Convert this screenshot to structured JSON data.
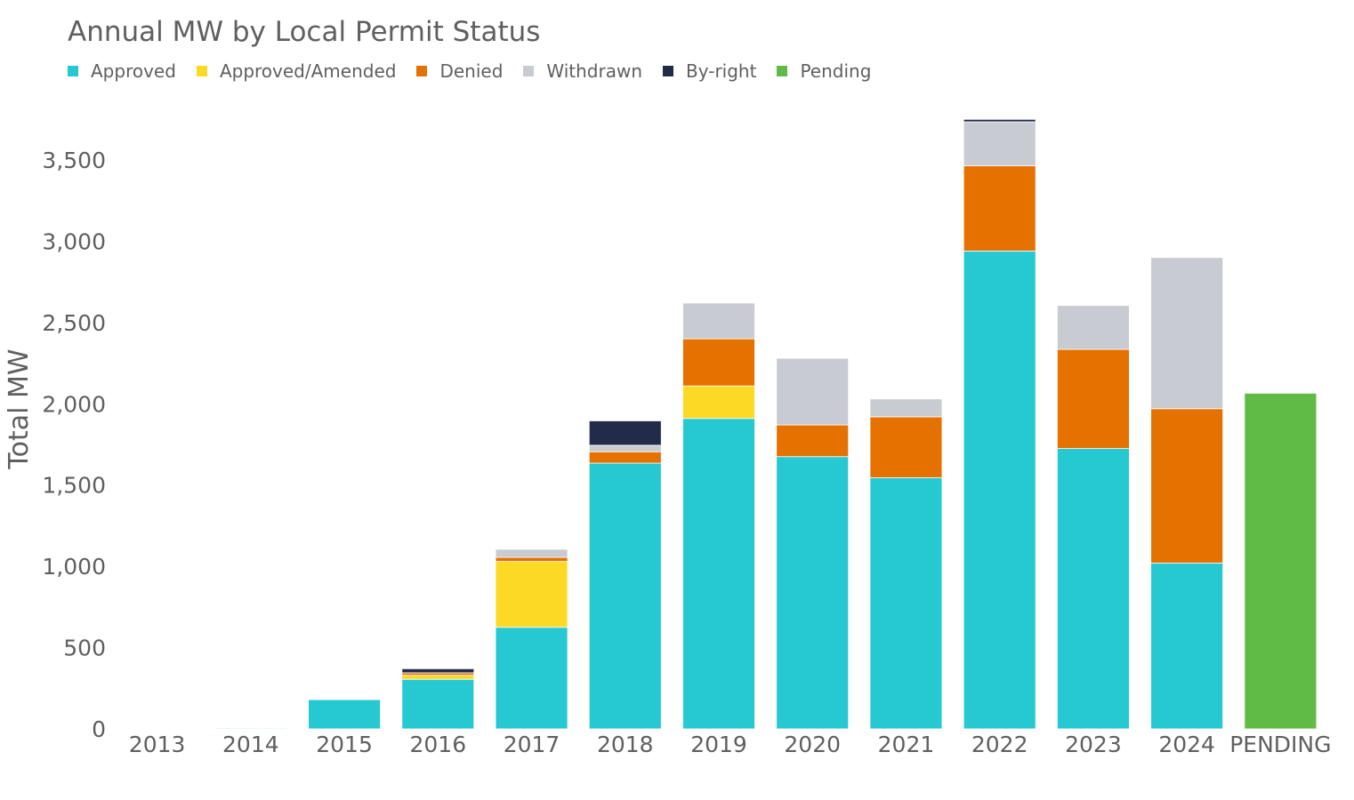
{
  "chart_data": {
    "type": "bar",
    "stacked": true,
    "title": "Annual MW by Local Permit Status",
    "xlabel": "",
    "ylabel": "Total MW",
    "ylim": [
      0,
      3750
    ],
    "yticks": [
      0,
      500,
      1000,
      1500,
      2000,
      2500,
      3000,
      3500
    ],
    "ytick_labels": [
      "0",
      "500",
      "1,000",
      "1,500",
      "2,000",
      "2,500",
      "3,000",
      "3,500"
    ],
    "categories": [
      "2013",
      "2014",
      "2015",
      "2016",
      "2017",
      "2018",
      "2019",
      "2020",
      "2021",
      "2022",
      "2023",
      "2024",
      "PENDING"
    ],
    "legend_position": "top-left",
    "grid": false,
    "series": [
      {
        "name": "Approved",
        "color": "#26c9d2",
        "values": [
          3,
          5,
          180,
          305,
          625,
          1635,
          1910,
          1675,
          1545,
          2940,
          1725,
          1020,
          0
        ]
      },
      {
        "name": "Approved/Amended",
        "color": "#fcd925",
        "values": [
          0,
          0,
          0,
          25,
          405,
          0,
          200,
          0,
          0,
          0,
          0,
          0,
          0
        ]
      },
      {
        "name": "Denied",
        "color": "#e57200",
        "values": [
          0,
          0,
          0,
          15,
          25,
          70,
          290,
          195,
          375,
          525,
          610,
          950,
          0
        ]
      },
      {
        "name": "Withdrawn",
        "color": "#c8cbd1",
        "values": [
          0,
          0,
          0,
          0,
          50,
          40,
          220,
          410,
          110,
          270,
          270,
          930,
          0
        ]
      },
      {
        "name": "By-right",
        "color": "#222b4a",
        "values": [
          0,
          0,
          0,
          25,
          0,
          150,
          0,
          0,
          0,
          15,
          0,
          0,
          0
        ]
      },
      {
        "name": "Pending",
        "color": "#60bb46",
        "values": [
          0,
          0,
          0,
          0,
          0,
          0,
          0,
          0,
          0,
          0,
          0,
          0,
          2065
        ]
      }
    ]
  }
}
